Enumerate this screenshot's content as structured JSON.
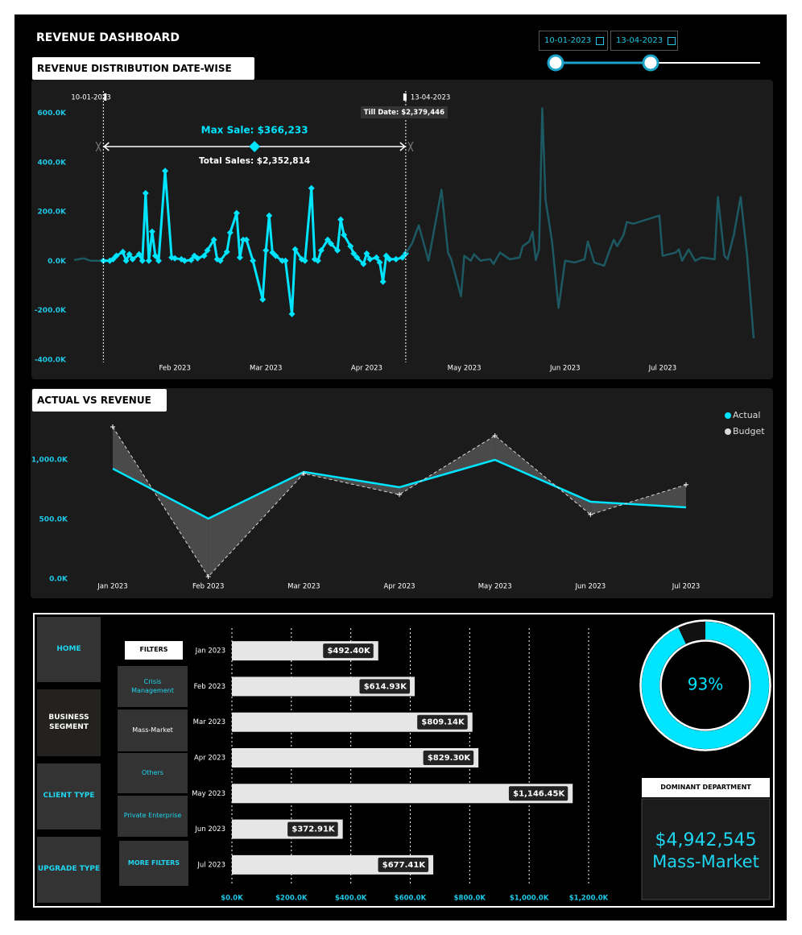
{
  "header": {
    "title": "REVENUE DASHBOARD",
    "date_from": "10-01-2023",
    "date_to": "13-04-2023"
  },
  "navigation": [
    "HOME",
    "BUSINESS SEGMENT",
    "CLIENT TYPE",
    "UPGRADE TYPE"
  ],
  "filters": {
    "title": "FILTERS",
    "items": [
      "Crisis Management",
      "Mass-Market",
      "Others",
      "Private Enterprise"
    ],
    "more": "MORE FILTERS"
  },
  "dominant_department": {
    "title": "DOMINANT DEPARTMENT",
    "value": "$4,942,545",
    "name": "Mass-Market"
  },
  "chart_data": [
    {
      "type": "line",
      "title": "REVENUE DISTRIBUTION DATE-WISE",
      "annotations": {
        "range_start": "10-01-2023",
        "range_end": "13-04-2023",
        "till_date": "Till Date: $2,379,446",
        "max_sale": "Max Sale: $366,233",
        "total_sales": "Total Sales: $2,352,814"
      },
      "series": [
        {
          "color": "#1c5962",
          "x": [
            0,
            3,
            5,
            9
          ],
          "values": [
            5000,
            12000,
            2000,
            2000
          ]
        },
        {
          "color": "#00e5ff",
          "marker": "diamond",
          "x": [
            9,
            11,
            12,
            13,
            15,
            16,
            17,
            18,
            20,
            21,
            22,
            23,
            24,
            25,
            26,
            28,
            30,
            31,
            33,
            34,
            36,
            37,
            38,
            40,
            41,
            43,
            44,
            45,
            47,
            48,
            50,
            51,
            52,
            53,
            55,
            58,
            59,
            60,
            61,
            62,
            64,
            65,
            67,
            68,
            70,
            71,
            73,
            74,
            75,
            76,
            78,
            79,
            81,
            82,
            83,
            85,
            86,
            87,
            89,
            90,
            91,
            93,
            94,
            95,
            96,
            97,
            99,
            101,
            102
          ],
          "values": [
            2000,
            2000,
            8000,
            22000,
            38000,
            2000,
            28000,
            8000,
            28000,
            2000,
            276000,
            2000,
            120000,
            22000,
            2000,
            366233,
            15000,
            12000,
            8000,
            2000,
            5000,
            22000,
            12000,
            22000,
            44000,
            87000,
            8000,
            2000,
            38000,
            116000,
            195000,
            15000,
            87000,
            87000,
            2000,
            -155000,
            44000,
            185000,
            35000,
            22000,
            2000,
            2000,
            -214000,
            48000,
            8000,
            2000,
            296000,
            8000,
            2000,
            44000,
            87000,
            71000,
            44000,
            169000,
            107000,
            61000,
            31000,
            15000,
            -11000,
            31000,
            8000,
            15000,
            -5000,
            -83000,
            22000,
            8000,
            8000,
            15000,
            31000
          ]
        },
        {
          "color": "#1c5962",
          "x": [
            102,
            104,
            106,
            109,
            113,
            115,
            116,
            119,
            120,
            122,
            123,
            125,
            126,
            128,
            129,
            131,
            134,
            137,
            138,
            140,
            141,
            142,
            143,
            144,
            145,
            147,
            149,
            151,
            154,
            157,
            158,
            160,
            163,
            165,
            166,
            167,
            169,
            170,
            172,
            180,
            181,
            185,
            186,
            187,
            189,
            191,
            193,
            197,
            198,
            200,
            201,
            203,
            205,
            207,
            209
          ],
          "values": [
            31000,
            74000,
            146000,
            2000,
            290000,
            35000,
            8000,
            -142000,
            22000,
            2000,
            28000,
            2000,
            5000,
            8000,
            -11000,
            35000,
            8000,
            15000,
            61000,
            80000,
            120000,
            5000,
            48000,
            620000,
            249000,
            80000,
            -189000,
            2000,
            -5000,
            8000,
            80000,
            -5000,
            -18000,
            54000,
            87000,
            61000,
            107000,
            159000,
            152000,
            185000,
            22000,
            35000,
            48000,
            2000,
            48000,
            2000,
            15000,
            8000,
            261000,
            22000,
            8000,
            113000,
            261000,
            22000,
            -312000
          ]
        }
      ],
      "xlim": [
        0,
        210
      ],
      "xticks": [
        {
          "value": 31,
          "label": "Feb 2023"
        },
        {
          "value": 59,
          "label": "Mar 2023"
        },
        {
          "value": 90,
          "label": "Apr 2023"
        },
        {
          "value": 120,
          "label": "May 2023"
        },
        {
          "value": 151,
          "label": "Jun 2023"
        },
        {
          "value": 181,
          "label": "Jul 2023"
        }
      ],
      "ylim": [
        -420000,
        700000
      ],
      "yticks": [
        {
          "value": 600000,
          "label": "600.0K"
        },
        {
          "value": 400000,
          "label": "400.0K"
        },
        {
          "value": 200000,
          "label": "200.0K"
        },
        {
          "value": 0,
          "label": "0.0K"
        },
        {
          "value": -200000,
          "label": "-200.0K"
        },
        {
          "value": -400000,
          "label": "-400.0K"
        }
      ]
    },
    {
      "type": "line",
      "title": "ACTUAL VS REVENUE",
      "categories": [
        "Jan 2023",
        "Feb 2023",
        "Mar 2023",
        "Apr 2023",
        "May 2023",
        "Jun 2023",
        "Jul 2023"
      ],
      "series": [
        {
          "name": "Actual",
          "color": "#00e5ff",
          "values": [
            926000,
            507000,
            899000,
            770000,
            1000000,
            649000,
            601000
          ]
        },
        {
          "name": "Budget",
          "color": "#d9d9d9",
          "style": "dashed",
          "marker": "plus",
          "values": [
            1277000,
            20000,
            885000,
            709000,
            1203000,
            541000,
            791000
          ]
        }
      ],
      "fill_between": true,
      "legend": "top-right",
      "ylim": [
        0,
        1300000
      ],
      "yticks": [
        {
          "value": 0,
          "label": "0.0K"
        },
        {
          "value": 500000,
          "label": "500.0K"
        },
        {
          "value": 1000000,
          "label": "1,000.0K"
        }
      ]
    },
    {
      "type": "barh",
      "categories": [
        "Jan 2023",
        "Feb 2023",
        "Mar 2023",
        "Apr 2023",
        "May 2023",
        "Jun 2023",
        "Jul 2023"
      ],
      "values": [
        492400,
        614930,
        809140,
        829300,
        1146450,
        372910,
        677410
      ],
      "value_labels": [
        "$492.40K",
        "$614.93K",
        "$809.14K",
        "$829.30K",
        "$1,146.45K",
        "$372.91K",
        "$677.41K"
      ],
      "color": "#e6e6e6",
      "grid": true,
      "xlim": [
        0,
        1200000
      ],
      "xticks": [
        {
          "value": 0,
          "label": "$0.0K"
        },
        {
          "value": 200000,
          "label": "$200.0K"
        },
        {
          "value": 400000,
          "label": "$400.0K"
        },
        {
          "value": 600000,
          "label": "$600.0K"
        },
        {
          "value": 800000,
          "label": "$800.0K"
        },
        {
          "value": 1000000,
          "label": "$1,000.0K"
        },
        {
          "value": 1200000,
          "label": "$1,200.0K"
        }
      ]
    },
    {
      "type": "donut",
      "values": [
        93
      ],
      "value_labels": [
        "93%"
      ],
      "color": "#00e5ff"
    }
  ]
}
